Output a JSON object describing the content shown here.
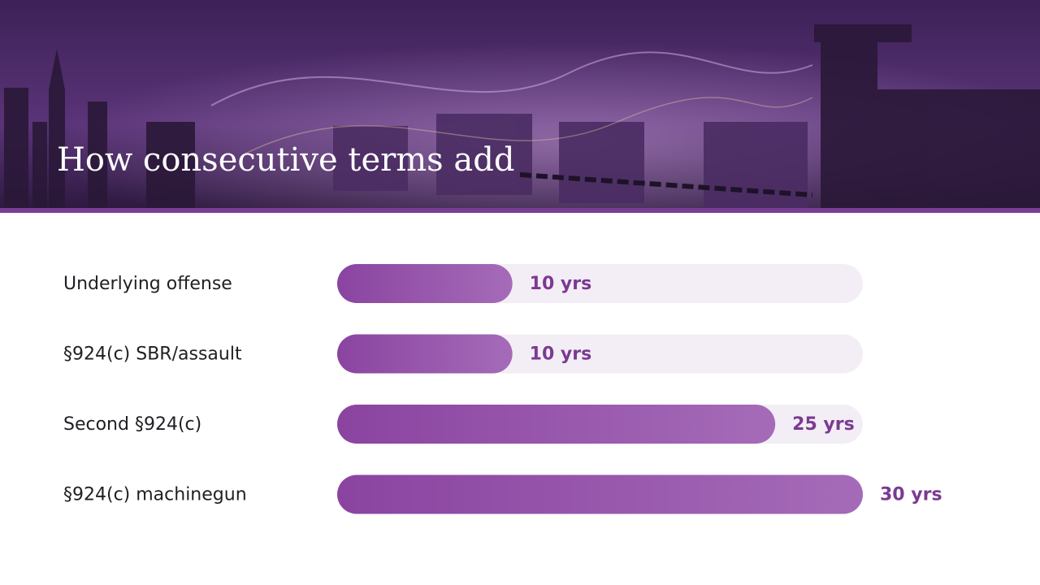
{
  "chart_data": {
    "type": "bar",
    "orientation": "horizontal",
    "title": "How consecutive terms add",
    "categories": [
      "Underlying offense",
      "§924(c) SBR/assault",
      "Second §924(c)",
      "§924(c) machinegun"
    ],
    "values": [
      10,
      10,
      25,
      30
    ],
    "value_labels": [
      "10 yrs",
      "10 yrs",
      "25 yrs",
      "30 yrs"
    ],
    "color": "#8a44a0",
    "xlim": [
      0,
      30
    ]
  }
}
